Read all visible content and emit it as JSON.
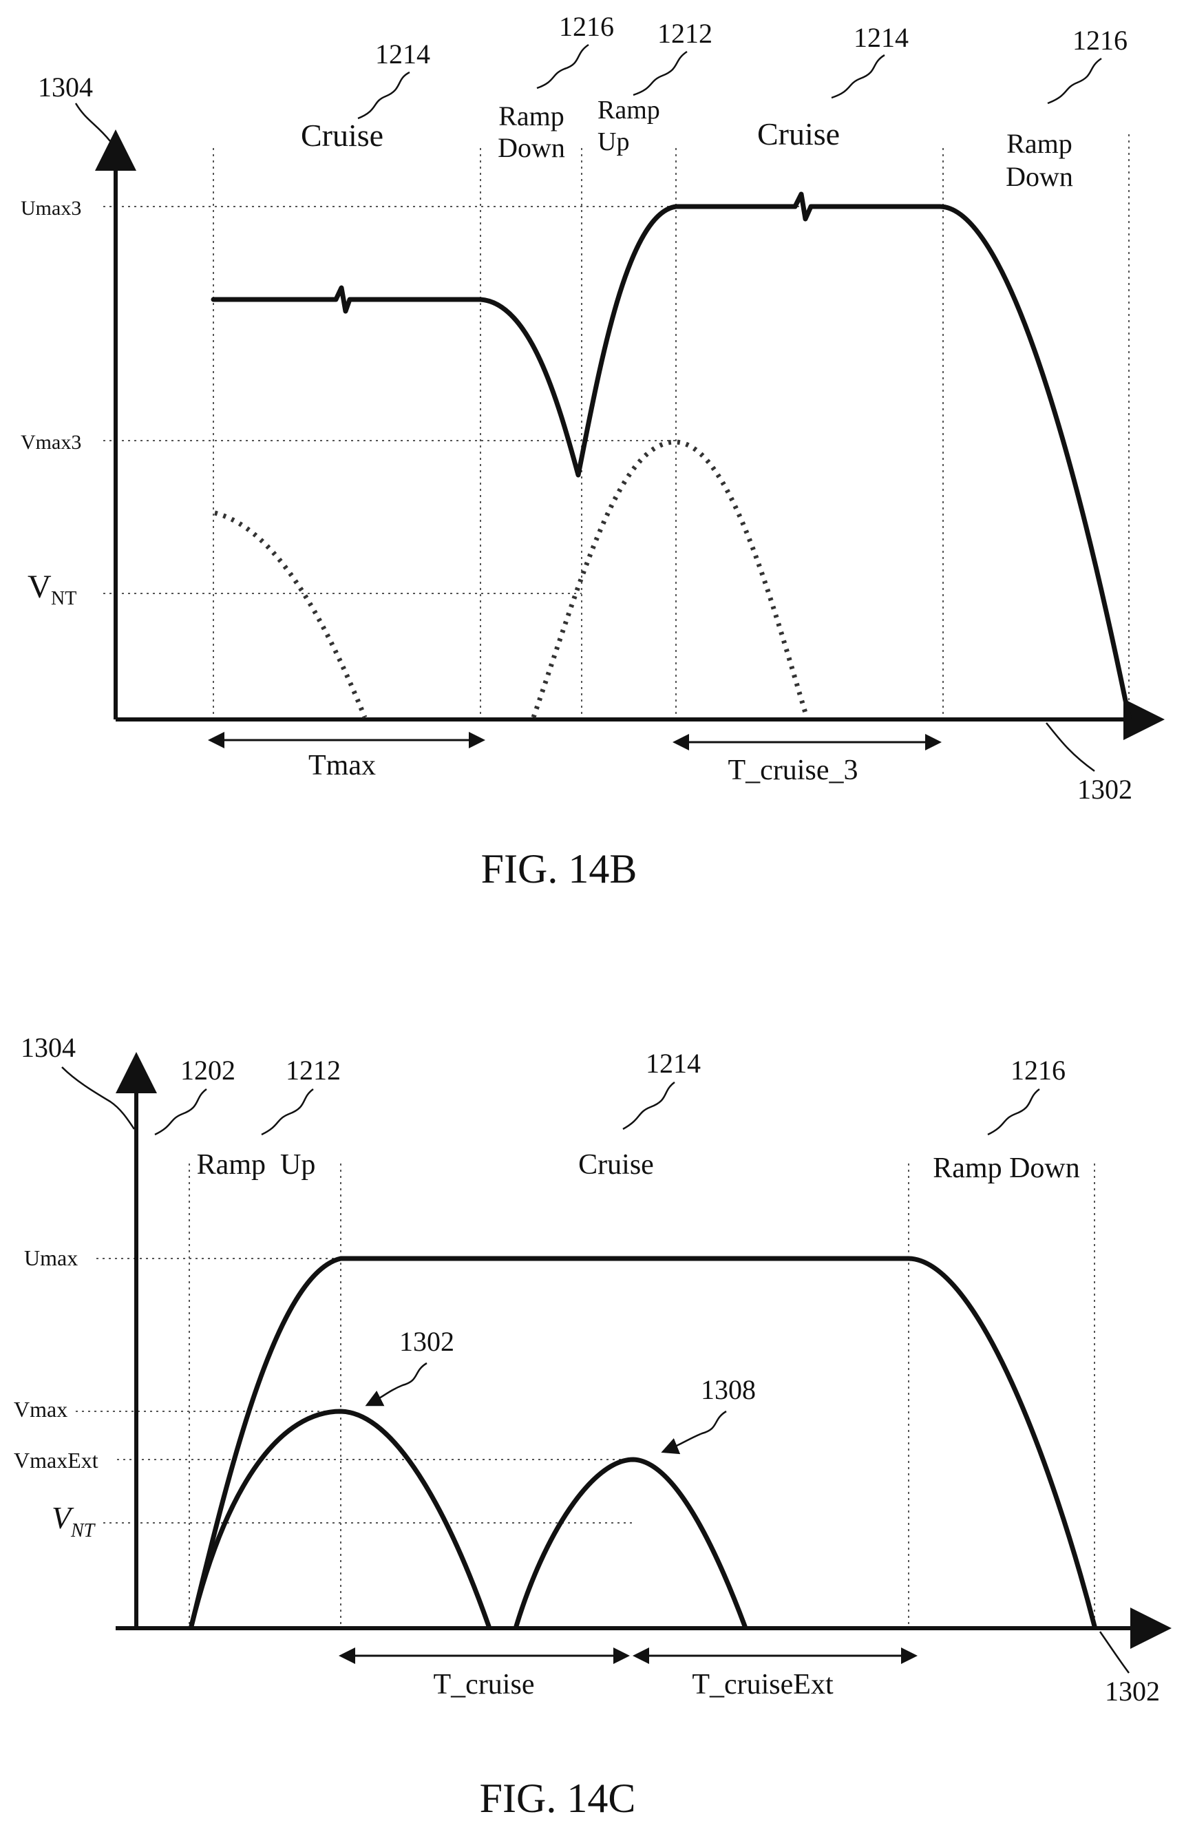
{
  "fig14b": {
    "caption": "FIG. 14B",
    "refs": {
      "y_axis": "1304",
      "x_axis": "1302",
      "cruise_1": "1214",
      "ramp_down_1": "1216",
      "ramp_up": "1212",
      "cruise_2": "1214",
      "ramp_down_2": "1216"
    },
    "phases": {
      "cruise_1": "Cruise",
      "ramp_down_1_line1": "Ramp",
      "ramp_down_1_line2": "Down",
      "ramp_up_line1": "Ramp",
      "ramp_up_line2": "Up",
      "cruise_2": "Cruise",
      "ramp_down_2_line1": "Ramp",
      "ramp_down_2_line2": "Down"
    },
    "y_ticks": {
      "umax3": "Umax3",
      "vmax3": "Vmax3",
      "vnt_main": "V",
      "vnt_sub": "NT"
    },
    "intervals": {
      "tmax": "Tmax",
      "t_cruise_3": "T_cruise_3"
    }
  },
  "fig14c": {
    "caption": "FIG. 14C",
    "refs": {
      "y_axis": "1304",
      "x_axis": "1302",
      "start": "1202",
      "ramp_up": "1212",
      "cruise": "1214",
      "ramp_down": "1216",
      "curve_vmax": "1302",
      "curve_vmaxext": "1308"
    },
    "phases": {
      "ramp_up": "Ramp  Up",
      "cruise": "Cruise",
      "ramp_down": "Ramp Down"
    },
    "y_ticks": {
      "umax": "Umax",
      "vmax": "Vmax",
      "vmaxext": "VmaxExt",
      "vnt_main": "V",
      "vnt_sub": "NT"
    },
    "intervals": {
      "t_cruise": "T_cruise",
      "t_cruise_ext": "T_cruiseExt"
    }
  }
}
